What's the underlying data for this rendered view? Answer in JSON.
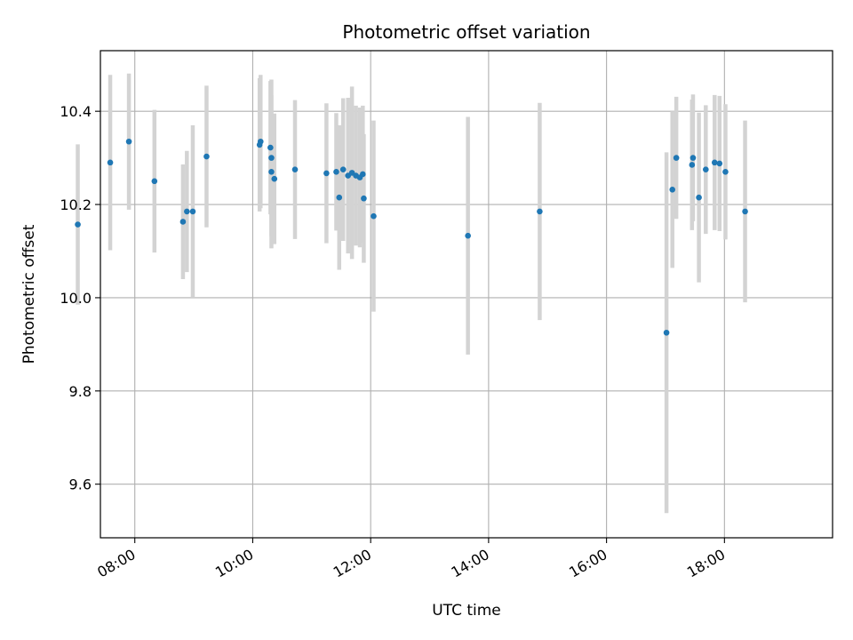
{
  "chart_data": {
    "type": "scatter",
    "title": "Photometric offset variation",
    "xlabel": "UTC time",
    "ylabel": "Photometric offset",
    "x_axis": {
      "kind": "time",
      "range": [
        "07:25",
        "19:50"
      ],
      "ticks": [
        "08:00",
        "10:00",
        "12:00",
        "14:00",
        "16:00",
        "18:00"
      ]
    },
    "y_axis": {
      "range": [
        9.485,
        10.53
      ],
      "ticks": [
        "9.6",
        "9.8",
        "10.0",
        "10.2",
        "10.4"
      ]
    },
    "grid": true,
    "colors": {
      "point": "#1f77b4",
      "errorbar": "#d3d3d3",
      "grid": "#b0b0b0"
    },
    "points": [
      {
        "x": "07:02",
        "y": 10.157,
        "err": 0.172
      },
      {
        "x": "07:35",
        "y": 10.29,
        "err": 0.188
      },
      {
        "x": "07:54",
        "y": 10.335,
        "err": 0.146
      },
      {
        "x": "08:20",
        "y": 10.25,
        "err": 0.153
      },
      {
        "x": "08:49",
        "y": 10.163,
        "err": 0.123
      },
      {
        "x": "08:53",
        "y": 10.185,
        "err": 0.13
      },
      {
        "x": "08:59",
        "y": 10.185,
        "err": 0.185
      },
      {
        "x": "09:13",
        "y": 10.303,
        "err": 0.152
      },
      {
        "x": "10:07",
        "y": 10.328,
        "err": 0.143
      },
      {
        "x": "10:08",
        "y": 10.335,
        "err": 0.143
      },
      {
        "x": "10:18",
        "y": 10.322,
        "err": 0.143
      },
      {
        "x": "10:19",
        "y": 10.3,
        "err": 0.168
      },
      {
        "x": "10:19",
        "y": 10.27,
        "err": 0.164
      },
      {
        "x": "10:22",
        "y": 10.255,
        "err": 0.14
      },
      {
        "x": "10:43",
        "y": 10.275,
        "err": 0.149
      },
      {
        "x": "11:15",
        "y": 10.267,
        "err": 0.15
      },
      {
        "x": "11:25",
        "y": 10.27,
        "err": 0.126
      },
      {
        "x": "11:28",
        "y": 10.215,
        "err": 0.155
      },
      {
        "x": "11:32",
        "y": 10.275,
        "err": 0.153
      },
      {
        "x": "11:37",
        "y": 10.262,
        "err": 0.167
      },
      {
        "x": "11:41",
        "y": 10.268,
        "err": 0.185
      },
      {
        "x": "11:45",
        "y": 10.262,
        "err": 0.15
      },
      {
        "x": "11:49",
        "y": 10.258,
        "err": 0.15
      },
      {
        "x": "11:52",
        "y": 10.265,
        "err": 0.147
      },
      {
        "x": "11:53",
        "y": 10.213,
        "err": 0.138
      },
      {
        "x": "12:03",
        "y": 10.175,
        "err": 0.205
      },
      {
        "x": "13:39",
        "y": 10.133,
        "err": 0.255
      },
      {
        "x": "14:52",
        "y": 10.185,
        "err": 0.233
      },
      {
        "x": "17:01",
        "y": 9.925,
        "err": 0.387
      },
      {
        "x": "17:07",
        "y": 10.232,
        "err": 0.168
      },
      {
        "x": "17:11",
        "y": 10.3,
        "err": 0.131
      },
      {
        "x": "17:27",
        "y": 10.285,
        "err": 0.14
      },
      {
        "x": "17:28",
        "y": 10.3,
        "err": 0.136
      },
      {
        "x": "17:34",
        "y": 10.215,
        "err": 0.182
      },
      {
        "x": "17:41",
        "y": 10.275,
        "err": 0.138
      },
      {
        "x": "17:50",
        "y": 10.29,
        "err": 0.145
      },
      {
        "x": "17:55",
        "y": 10.288,
        "err": 0.145
      },
      {
        "x": "18:01",
        "y": 10.27,
        "err": 0.145
      },
      {
        "x": "18:21",
        "y": 10.185,
        "err": 0.195
      }
    ]
  }
}
